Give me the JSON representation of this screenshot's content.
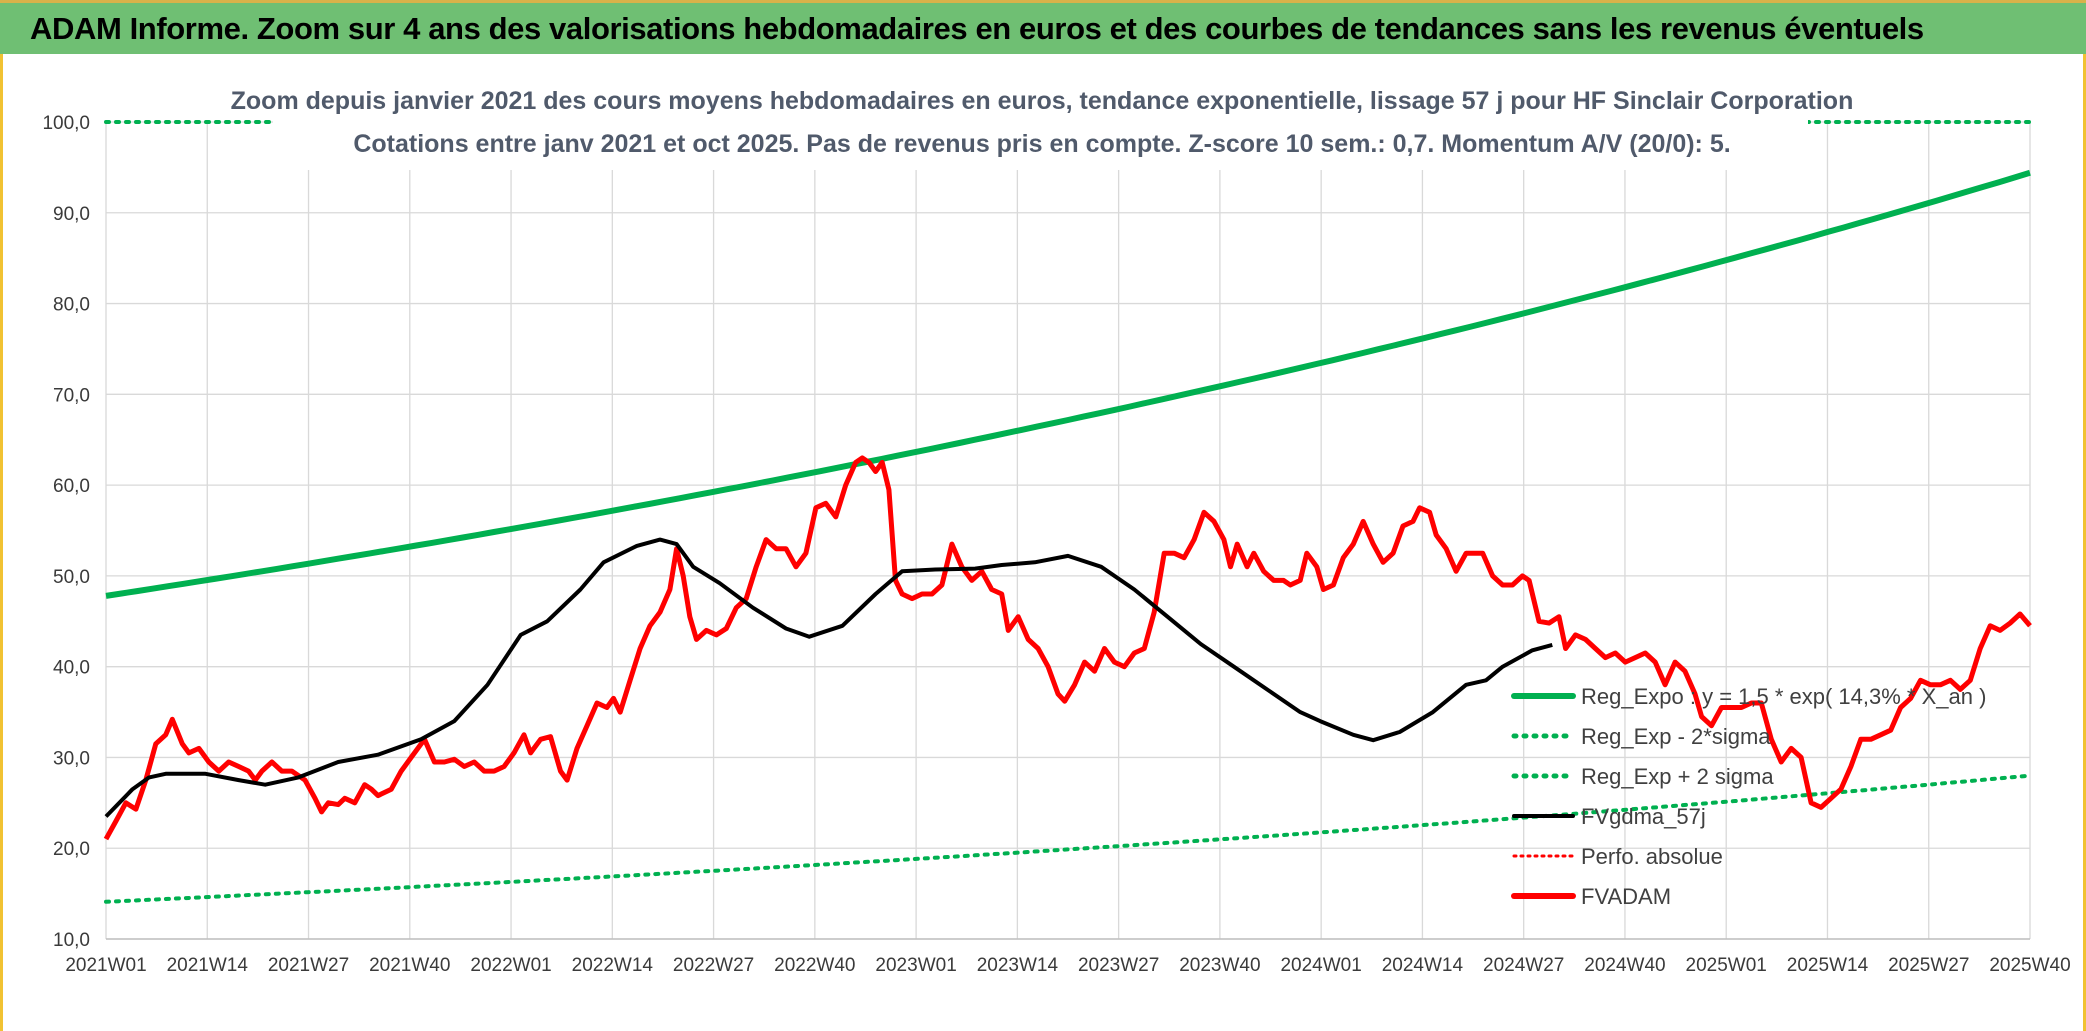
{
  "banner": {
    "title": "ADAM Informe. Zoom sur 4 ans des valorisations hebdomadaires en euros et des courbes de tendances sans les revenus éventuels"
  },
  "colors": {
    "banner_bg": "#6fbf73",
    "reg_expo": "#00b050",
    "fvadam": "#ff0000",
    "fvgdma": "#000000",
    "perfo": "#ff0000",
    "grid": "#d9d9d9"
  },
  "chart_data": {
    "type": "line",
    "title": "Zoom depuis janvier 2021 des cours moyens hebdomadaires en euros, tendance exponentielle, lissage 57 j pour HF Sinclair Corporation",
    "subtitle": "Cotations entre janv 2021 et oct 2025. Pas de revenus pris en compte. Z-score 10 sem.: 0,7. Momentum A/V (20/0): 5.",
    "xlabel": "",
    "ylabel": "",
    "ylim": [
      10,
      100
    ],
    "yticks": [
      "10,0",
      "20,0",
      "30,0",
      "40,0",
      "50,0",
      "60,0",
      "70,0",
      "80,0",
      "90,0",
      "100,0"
    ],
    "x_tick_labels": [
      "2021W01",
      "2021W14",
      "2021W27",
      "2021W40",
      "2022W01",
      "2022W14",
      "2022W27",
      "2022W40",
      "2023W01",
      "2023W14",
      "2023W27",
      "2023W40",
      "2024W01",
      "2024W14",
      "2024W27",
      "2024W40",
      "2025W01",
      "2025W14",
      "2025W27",
      "2025W40"
    ],
    "weeks_total": 248,
    "grid": true,
    "legend_position": "bottom-right",
    "series": [
      {
        "name": "Reg_Expo : y = 1,5 * exp( 14,3% * X_an )",
        "style": "solid-thick",
        "color": "#00b050",
        "start": 47.8,
        "end": 94.4
      },
      {
        "name": "Reg_Exp - 2*sigma",
        "style": "dotted",
        "color": "#00b050",
        "start": 14.1,
        "end": 28.0
      },
      {
        "name": "Reg_Exp + 2 sigma",
        "style": "dotted",
        "color": "#00b050",
        "start": 100.0,
        "end": 100.0
      },
      {
        "name": "FVgdma_57j",
        "style": "solid",
        "color": "#000000",
        "points": [
          [
            0,
            23.5
          ],
          [
            8,
            26.5
          ],
          [
            13,
            27.8
          ],
          [
            18,
            28.2
          ],
          [
            30,
            28.2
          ],
          [
            40,
            27.5
          ],
          [
            48,
            27.0
          ],
          [
            58,
            27.8
          ],
          [
            70,
            29.5
          ],
          [
            82,
            30.3
          ],
          [
            95,
            32.0
          ],
          [
            105,
            34.0
          ],
          [
            115,
            38.0
          ],
          [
            125,
            43.5
          ],
          [
            133,
            45.0
          ],
          [
            143,
            48.5
          ],
          [
            150,
            51.5
          ],
          [
            160,
            53.3
          ],
          [
            167,
            54.0
          ],
          [
            172,
            53.5
          ],
          [
            177,
            51.0
          ],
          [
            185,
            49.2
          ],
          [
            195,
            46.5
          ],
          [
            205,
            44.2
          ],
          [
            212,
            43.3
          ],
          [
            222,
            44.5
          ],
          [
            232,
            48.0
          ],
          [
            240,
            50.5
          ],
          [
            250,
            50.7
          ],
          [
            262,
            50.8
          ],
          [
            270,
            51.2
          ],
          [
            280,
            51.5
          ],
          [
            290,
            52.2
          ],
          [
            300,
            51.0
          ],
          [
            310,
            48.5
          ],
          [
            320,
            45.5
          ],
          [
            330,
            42.5
          ],
          [
            340,
            40.0
          ],
          [
            350,
            37.5
          ],
          [
            360,
            35.0
          ],
          [
            366,
            34.0
          ],
          [
            376,
            32.5
          ],
          [
            382,
            31.9
          ],
          [
            390,
            32.8
          ],
          [
            400,
            35.0
          ],
          [
            410,
            38.0
          ],
          [
            416,
            38.5
          ],
          [
            421,
            40.0
          ],
          [
            430,
            41.8
          ],
          [
            436,
            42.4
          ]
        ]
      },
      {
        "name": "Perfo. absolue",
        "style": "dotted-red",
        "color": "#ff0000",
        "points": []
      },
      {
        "name": "FVADAM",
        "style": "solid-thick",
        "color": "#ff0000",
        "points": [
          [
            0,
            21.0
          ],
          [
            3,
            23.0
          ],
          [
            6,
            25.0
          ],
          [
            9,
            24.3
          ],
          [
            12,
            27.5
          ],
          [
            15,
            31.5
          ],
          [
            18,
            32.5
          ],
          [
            20,
            34.2
          ],
          [
            23,
            31.5
          ],
          [
            25,
            30.5
          ],
          [
            28,
            31.0
          ],
          [
            31,
            29.5
          ],
          [
            34,
            28.5
          ],
          [
            37,
            29.5
          ],
          [
            40,
            29.0
          ],
          [
            43,
            28.5
          ],
          [
            45,
            27.5
          ],
          [
            47,
            28.5
          ],
          [
            50,
            29.5
          ],
          [
            53,
            28.5
          ],
          [
            56,
            28.5
          ],
          [
            60,
            27.5
          ],
          [
            63,
            25.5
          ],
          [
            65,
            24.0
          ],
          [
            67,
            25.0
          ],
          [
            70,
            24.8
          ],
          [
            72,
            25.5
          ],
          [
            75,
            25.0
          ],
          [
            78,
            27.0
          ],
          [
            80,
            26.5
          ],
          [
            82,
            25.8
          ],
          [
            86,
            26.5
          ],
          [
            89,
            28.5
          ],
          [
            92,
            30.0
          ],
          [
            96,
            32.0
          ],
          [
            99,
            29.5
          ],
          [
            102,
            29.5
          ],
          [
            105,
            29.8
          ],
          [
            108,
            29.0
          ],
          [
            111,
            29.5
          ],
          [
            114,
            28.5
          ],
          [
            117,
            28.5
          ],
          [
            120,
            29.0
          ],
          [
            123,
            30.5
          ],
          [
            126,
            32.5
          ],
          [
            128,
            30.5
          ],
          [
            131,
            32.0
          ],
          [
            134,
            32.3
          ],
          [
            137,
            28.5
          ],
          [
            139,
            27.5
          ],
          [
            142,
            31.0
          ],
          [
            145,
            33.5
          ],
          [
            148,
            36.0
          ],
          [
            151,
            35.5
          ],
          [
            153,
            36.5
          ],
          [
            155,
            35.0
          ],
          [
            158,
            38.5
          ],
          [
            161,
            42.0
          ],
          [
            164,
            44.5
          ],
          [
            167,
            46.0
          ],
          [
            170,
            48.5
          ],
          [
            172,
            53.0
          ],
          [
            174,
            50.0
          ],
          [
            176,
            45.5
          ],
          [
            178,
            43.0
          ],
          [
            181,
            44.0
          ],
          [
            184,
            43.5
          ],
          [
            187,
            44.2
          ],
          [
            190,
            46.5
          ],
          [
            193,
            47.5
          ],
          [
            196,
            51.0
          ],
          [
            199,
            54.0
          ],
          [
            202,
            53.0
          ],
          [
            205,
            53.0
          ],
          [
            208,
            51.0
          ],
          [
            211,
            52.5
          ],
          [
            214,
            57.5
          ],
          [
            217,
            58.0
          ],
          [
            220,
            56.5
          ],
          [
            223,
            60.0
          ],
          [
            226,
            62.5
          ],
          [
            228,
            63.0
          ],
          [
            230,
            62.5
          ],
          [
            232,
            61.5
          ],
          [
            234,
            62.5
          ],
          [
            236,
            59.5
          ],
          [
            238,
            49.5
          ],
          [
            240,
            48.0
          ],
          [
            243,
            47.5
          ],
          [
            246,
            48.0
          ],
          [
            249,
            48.0
          ],
          [
            252,
            49.0
          ],
          [
            255,
            53.5
          ],
          [
            258,
            51.0
          ],
          [
            261,
            49.5
          ],
          [
            264,
            50.5
          ],
          [
            267,
            48.5
          ],
          [
            270,
            48.0
          ],
          [
            272,
            44.0
          ],
          [
            275,
            45.5
          ],
          [
            278,
            43.0
          ],
          [
            281,
            42.0
          ],
          [
            284,
            40.0
          ],
          [
            287,
            37.0
          ],
          [
            289,
            36.2
          ],
          [
            292,
            38.0
          ],
          [
            295,
            40.5
          ],
          [
            298,
            39.5
          ],
          [
            301,
            42.0
          ],
          [
            304,
            40.5
          ],
          [
            307,
            40.0
          ],
          [
            310,
            41.5
          ],
          [
            313,
            42.0
          ],
          [
            316,
            46.0
          ],
          [
            319,
            52.5
          ],
          [
            322,
            52.5
          ],
          [
            325,
            52.0
          ],
          [
            328,
            54.0
          ],
          [
            331,
            57.0
          ],
          [
            334,
            56.0
          ],
          [
            337,
            54.0
          ],
          [
            339,
            51.0
          ],
          [
            341,
            53.5
          ],
          [
            344,
            51.0
          ],
          [
            346,
            52.5
          ],
          [
            349,
            50.5
          ],
          [
            352,
            49.5
          ],
          [
            355,
            49.5
          ],
          [
            357,
            49.0
          ],
          [
            360,
            49.5
          ],
          [
            362,
            52.5
          ],
          [
            365,
            51.0
          ],
          [
            367,
            48.5
          ],
          [
            370,
            49.0
          ],
          [
            373,
            52.0
          ],
          [
            376,
            53.5
          ],
          [
            379,
            56.0
          ],
          [
            382,
            53.5
          ],
          [
            385,
            51.5
          ],
          [
            388,
            52.5
          ],
          [
            391,
            55.5
          ],
          [
            394,
            56.0
          ],
          [
            396,
            57.5
          ],
          [
            399,
            57.0
          ],
          [
            401,
            54.5
          ],
          [
            404,
            53.0
          ],
          [
            407,
            50.5
          ],
          [
            410,
            52.5
          ],
          [
            413,
            52.5
          ],
          [
            415,
            52.5
          ],
          [
            418,
            50.0
          ],
          [
            421,
            49.0
          ],
          [
            424,
            49.0
          ],
          [
            427,
            50.0
          ],
          [
            429,
            49.5
          ],
          [
            432,
            45.0
          ],
          [
            435,
            44.8
          ],
          [
            438,
            45.5
          ],
          [
            440,
            42.0
          ],
          [
            443,
            43.5
          ],
          [
            446,
            43.0
          ],
          [
            449,
            42.0
          ],
          [
            452,
            41.0
          ],
          [
            455,
            41.5
          ],
          [
            458,
            40.5
          ],
          [
            461,
            41.0
          ],
          [
            464,
            41.5
          ],
          [
            467,
            40.5
          ],
          [
            470,
            38.0
          ],
          [
            473,
            40.5
          ],
          [
            476,
            39.5
          ],
          [
            479,
            37.0
          ],
          [
            481,
            34.5
          ],
          [
            484,
            33.5
          ],
          [
            487,
            35.5
          ],
          [
            490,
            35.5
          ],
          [
            493,
            35.5
          ],
          [
            496,
            36.0
          ],
          [
            499,
            36.0
          ],
          [
            502,
            32.0
          ],
          [
            505,
            29.5
          ],
          [
            508,
            31.0
          ],
          [
            511,
            30.0
          ],
          [
            514,
            25.0
          ],
          [
            517,
            24.5
          ],
          [
            520,
            25.5
          ],
          [
            523,
            26.5
          ],
          [
            526,
            29.0
          ],
          [
            529,
            32.0
          ],
          [
            532,
            32.0
          ],
          [
            535,
            32.5
          ],
          [
            538,
            33.0
          ],
          [
            541,
            35.5
          ],
          [
            544,
            36.5
          ],
          [
            547,
            38.5
          ],
          [
            550,
            38.0
          ],
          [
            553,
            38.0
          ],
          [
            556,
            38.5
          ],
          [
            559,
            37.5
          ],
          [
            562,
            38.5
          ],
          [
            565,
            42.0
          ],
          [
            568,
            44.5
          ],
          [
            571,
            44.0
          ],
          [
            574,
            44.8
          ],
          [
            577,
            45.8
          ],
          [
            580,
            44.5
          ]
        ]
      }
    ]
  }
}
